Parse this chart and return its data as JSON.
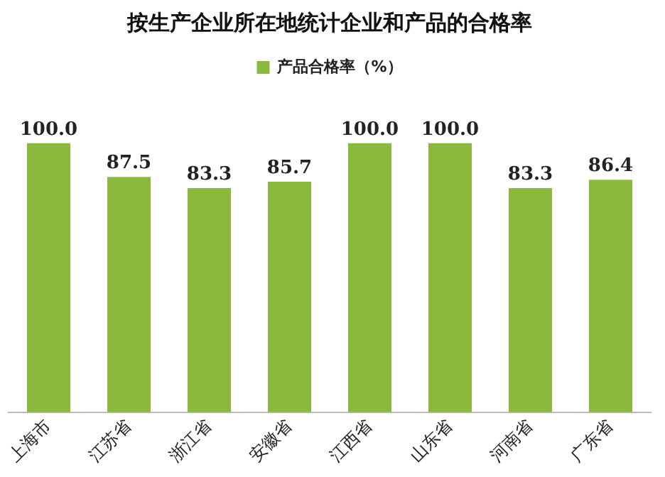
{
  "chart_data": {
    "type": "bar",
    "title": "按生产企业所在地统计企业和产品的合格率",
    "categories": [
      "上海市",
      "江苏省",
      "浙江省",
      "安徽省",
      "江西省",
      "山东省",
      "河南省",
      "广东省"
    ],
    "series": [
      {
        "name": "产品合格率（%）",
        "color": "#8db83e",
        "values": [
          100.0,
          87.5,
          83.3,
          85.7,
          100.0,
          100.0,
          83.3,
          86.4
        ],
        "value_labels": [
          "100.0",
          "87.5",
          "83.3",
          "85.7",
          "100.0",
          "100.0",
          "83.3",
          "86.4"
        ]
      }
    ],
    "grid": false,
    "legend": "top"
  }
}
